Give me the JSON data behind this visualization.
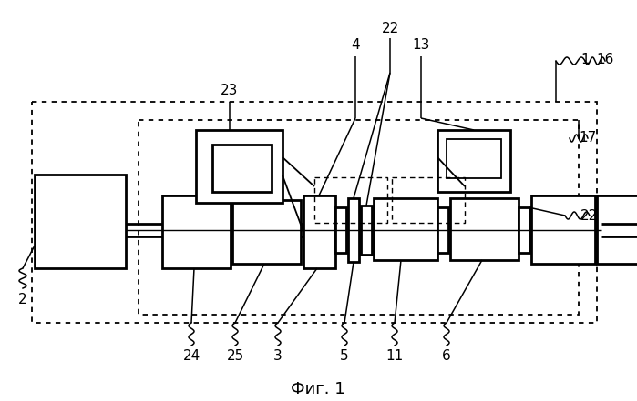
{
  "title": "Фиг. 1",
  "title_fontsize": 13,
  "bg_color": "#ffffff",
  "fig_width": 6.99,
  "fig_height": 4.41,
  "dpi": 100
}
